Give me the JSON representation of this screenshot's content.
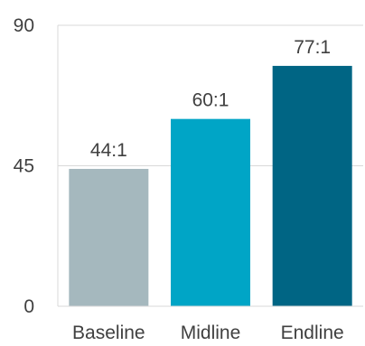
{
  "chart_data": {
    "type": "bar",
    "categories": [
      "Baseline",
      "Midline",
      "Endline"
    ],
    "values": [
      44,
      60,
      77
    ],
    "data_labels": [
      "44:1",
      "60:1",
      "77:1"
    ],
    "colors": [
      "#a5b8be",
      "#00a5c6",
      "#006584"
    ],
    "ylim": [
      0,
      90
    ],
    "yticks": [
      0,
      45,
      90
    ],
    "ytick_labels": [
      "0",
      "45",
      "90"
    ],
    "grid": true,
    "title": "",
    "xlabel": "",
    "ylabel": ""
  }
}
